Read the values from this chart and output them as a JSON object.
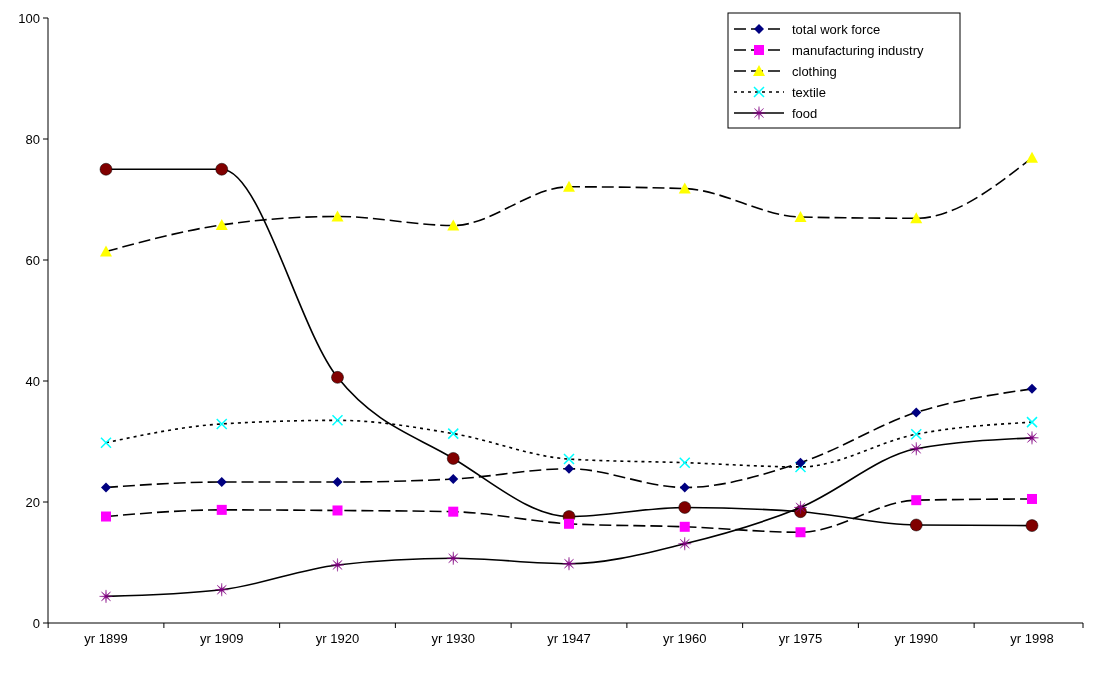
{
  "chart_data": {
    "type": "line",
    "categories": [
      "yr 1899",
      "yr 1909",
      "yr 1920",
      "yr 1930",
      "yr 1947",
      "yr 1960",
      "yr 1975",
      "yr 1990",
      "yr 1998"
    ],
    "ylim": [
      0,
      100
    ],
    "yticks": [
      0,
      20,
      40,
      60,
      80,
      100
    ],
    "grid": false,
    "legend": "top right",
    "series": [
      {
        "name": "total work force",
        "color": "#000080",
        "marker": "diamond",
        "line_style": "dashed",
        "values": [
          22.4,
          23.3,
          23.3,
          23.8,
          25.5,
          22.4,
          26.5,
          34.8,
          38.7
        ]
      },
      {
        "name": "manufacturing industry",
        "color": "#ff00ff",
        "marker": "square",
        "line_style": "dashed",
        "values": [
          17.6,
          18.7,
          18.6,
          18.4,
          16.4,
          15.9,
          15.0,
          20.3,
          20.5
        ]
      },
      {
        "name": "clothing",
        "color": "#ffff00",
        "marker": "triangle",
        "line_style": "dashed",
        "values": [
          61.4,
          65.8,
          67.2,
          65.7,
          72.1,
          71.8,
          67.1,
          66.9,
          76.9
        ]
      },
      {
        "name": "textile",
        "color": "#00ffff",
        "marker": "cross",
        "line_style": "dotted",
        "values": [
          29.8,
          32.9,
          33.5,
          31.3,
          27.1,
          26.5,
          25.8,
          31.2,
          33.2
        ]
      },
      {
        "name": "food",
        "color": "#800080",
        "marker": "star",
        "line_style": "solid",
        "values": [
          4.4,
          5.5,
          9.6,
          10.7,
          9.8,
          13.1,
          19.1,
          28.8,
          30.6
        ]
      },
      {
        "color": "#800000",
        "marker": "circle",
        "line_style": "solid",
        "values": [
          75,
          75,
          40.6,
          27.2,
          17.6,
          19.1,
          18.4,
          16.2,
          16.1
        ]
      }
    ]
  }
}
